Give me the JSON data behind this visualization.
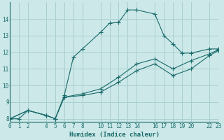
{
  "xlabel": "Humidex (Indice chaleur)",
  "bg_color": "#cce8e8",
  "grid_color": "#aacfcf",
  "line_color": "#1a6b6b",
  "xlim": [
    0,
    23
  ],
  "ylim": [
    7.8,
    15.0
  ],
  "xticks": [
    0,
    1,
    2,
    4,
    5,
    6,
    7,
    8,
    10,
    11,
    12,
    13,
    14,
    16,
    17,
    18,
    19,
    20,
    22,
    23
  ],
  "yticks": [
    8,
    9,
    10,
    11,
    12,
    13,
    14
  ],
  "line1_x": [
    0,
    1,
    2,
    4,
    5,
    6,
    7,
    8,
    10,
    11,
    12,
    13,
    14,
    16,
    17,
    18,
    19,
    20,
    22,
    23
  ],
  "line1_y": [
    8.0,
    8.0,
    8.5,
    8.2,
    8.0,
    9.4,
    11.7,
    12.2,
    13.2,
    13.75,
    13.8,
    14.55,
    14.55,
    14.3,
    13.0,
    12.5,
    11.95,
    11.95,
    12.2,
    12.2
  ],
  "line2_x": [
    0,
    2,
    4,
    5,
    6,
    8,
    10,
    12,
    14,
    16,
    18,
    20,
    22,
    23
  ],
  "line2_y": [
    8.0,
    8.5,
    8.2,
    8.0,
    9.3,
    9.5,
    9.8,
    10.5,
    11.3,
    11.6,
    11.0,
    11.5,
    11.9,
    12.15
  ],
  "line3_x": [
    0,
    2,
    4,
    5,
    6,
    8,
    10,
    12,
    14,
    16,
    18,
    20,
    22,
    23
  ],
  "line3_y": [
    8.0,
    8.5,
    8.2,
    8.0,
    9.3,
    9.4,
    9.6,
    10.2,
    10.9,
    11.3,
    10.6,
    11.0,
    11.8,
    12.1
  ]
}
